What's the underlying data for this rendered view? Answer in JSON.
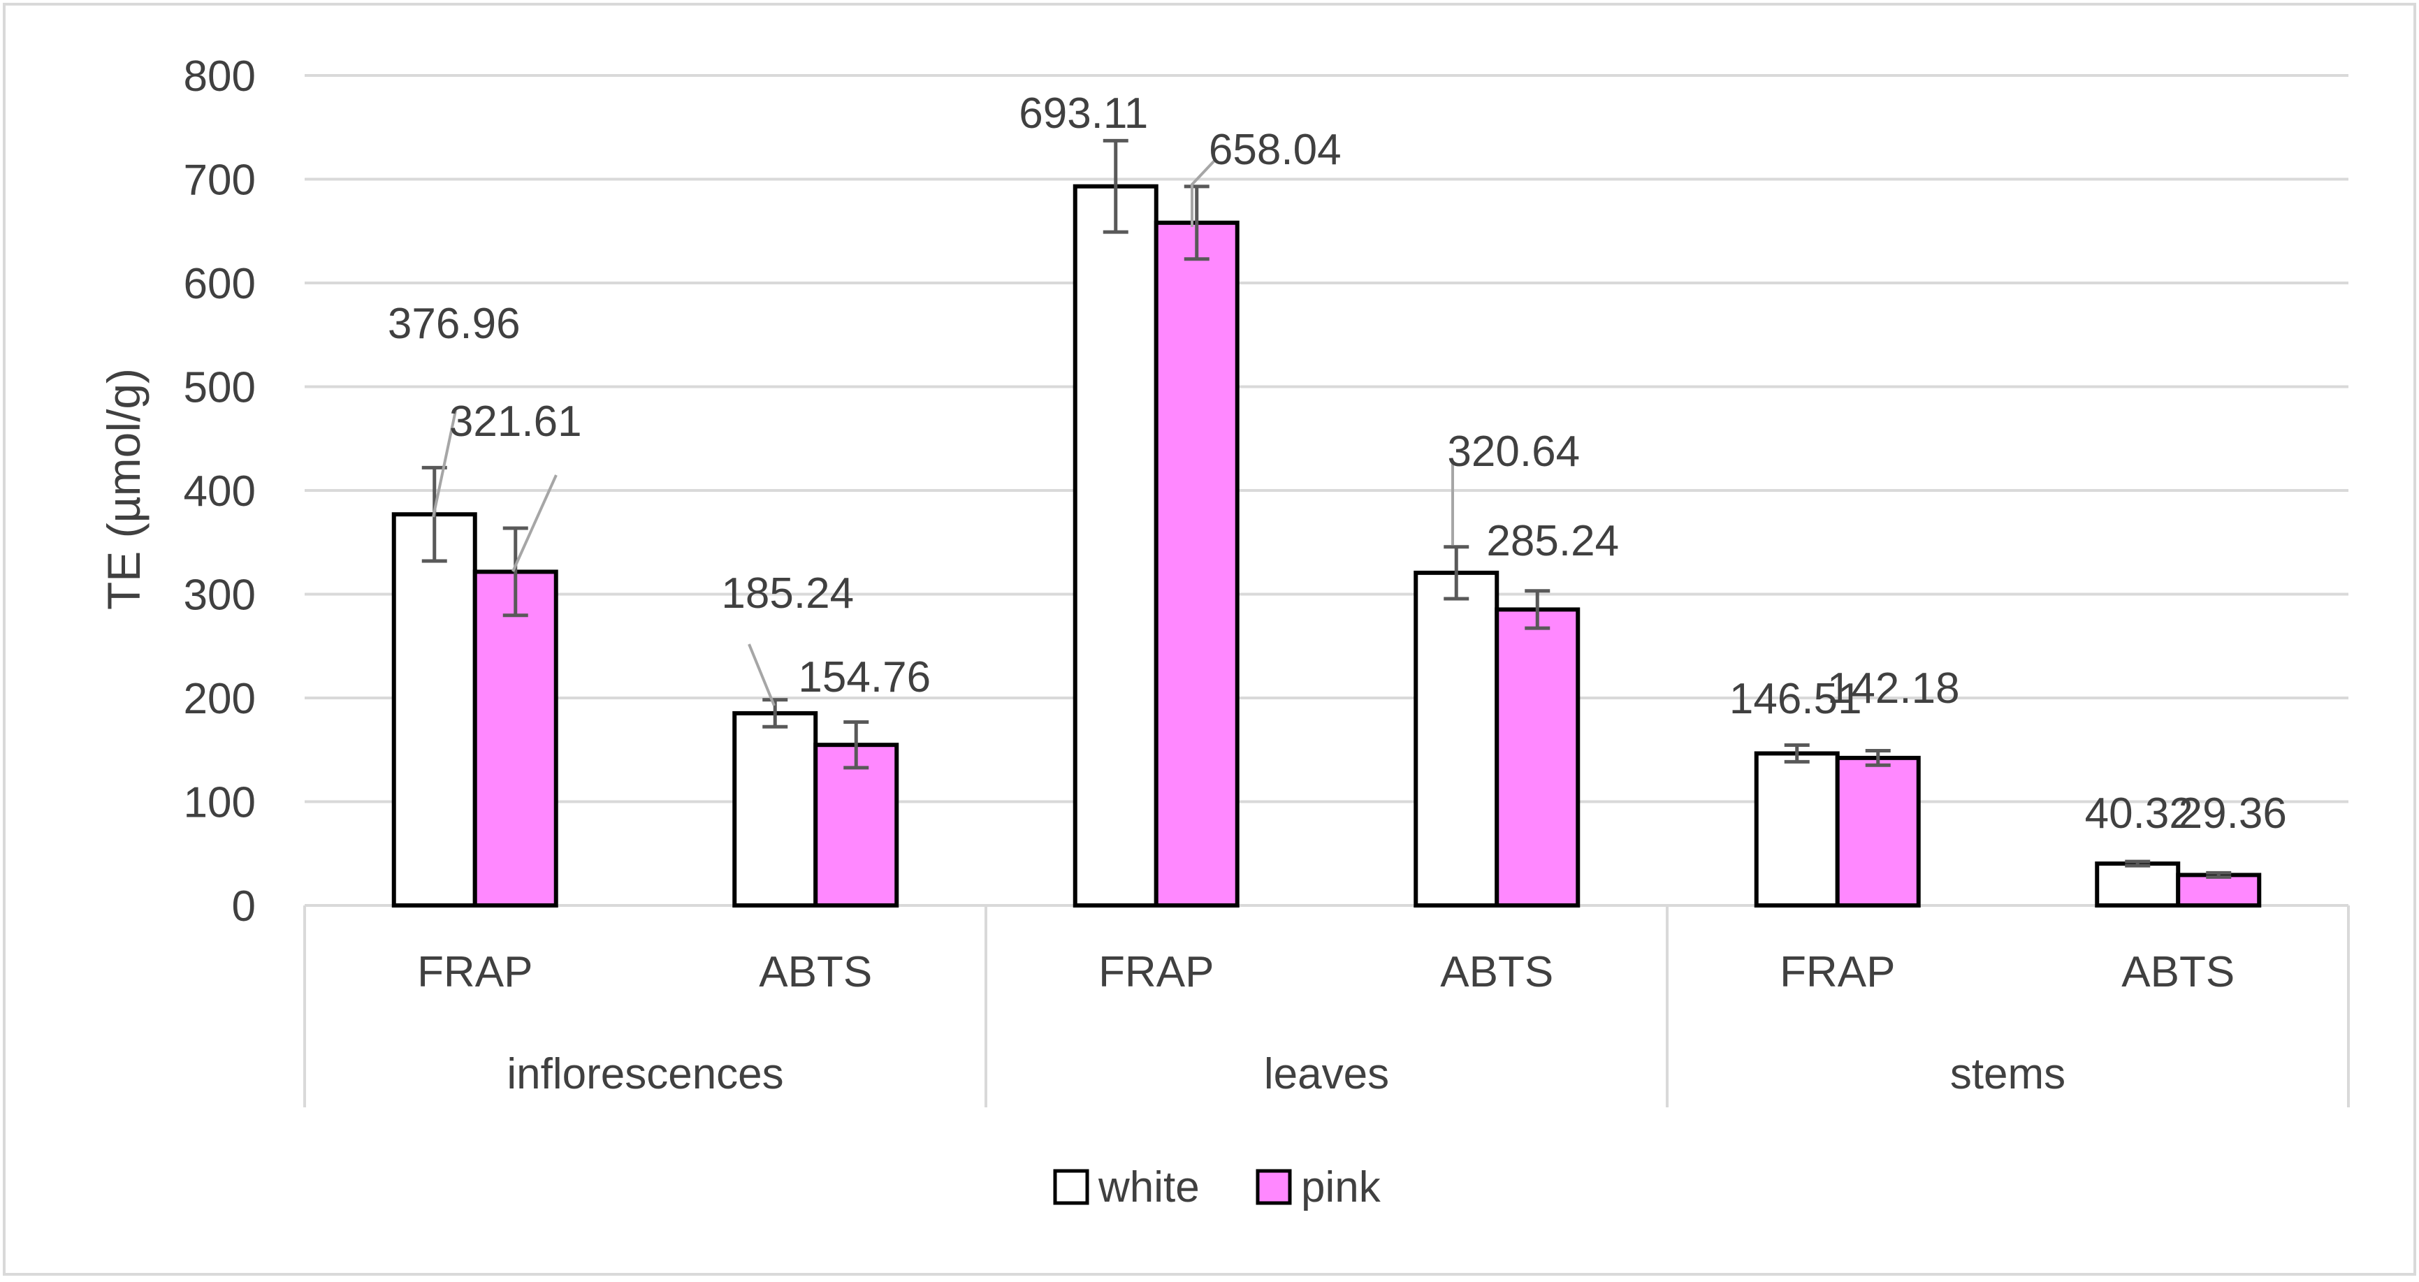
{
  "chart_data": {
    "type": "bar",
    "title": "",
    "ylabel": "TE (µmol/g)",
    "xlabel": "",
    "ylim": [
      0,
      800
    ],
    "yticks": [
      0,
      100,
      200,
      300,
      400,
      500,
      600,
      700,
      800
    ],
    "grid": true,
    "legend_position": "bottom",
    "groups": [
      {
        "label": "inflorescences",
        "categories": [
          "FRAP",
          "ABTS"
        ]
      },
      {
        "label": "leaves",
        "categories": [
          "FRAP",
          "ABTS"
        ]
      },
      {
        "label": "stems",
        "categories": [
          "FRAP",
          "ABTS"
        ]
      }
    ],
    "categories": [
      "FRAP",
      "ABTS",
      "FRAP",
      "ABTS",
      "FRAP",
      "ABTS"
    ],
    "series": [
      {
        "name": "white",
        "color": "#ffffff",
        "values": [
          376.96,
          185.24,
          693.11,
          320.64,
          146.51,
          40.32
        ],
        "labels": [
          "376.96",
          "185.24",
          "693.11",
          "320.64",
          "146.51",
          "40.32"
        ],
        "errors": [
          45,
          13,
          44,
          25,
          8,
          2
        ]
      },
      {
        "name": "pink",
        "color": "#ff88ff",
        "values": [
          321.61,
          154.76,
          658.04,
          285.24,
          142.18,
          29.36
        ],
        "labels": [
          "321.61",
          "154.76",
          "658.04",
          "285.24",
          "142.18",
          "29.36"
        ],
        "errors": [
          42,
          22,
          35,
          18,
          7,
          2
        ]
      }
    ]
  }
}
